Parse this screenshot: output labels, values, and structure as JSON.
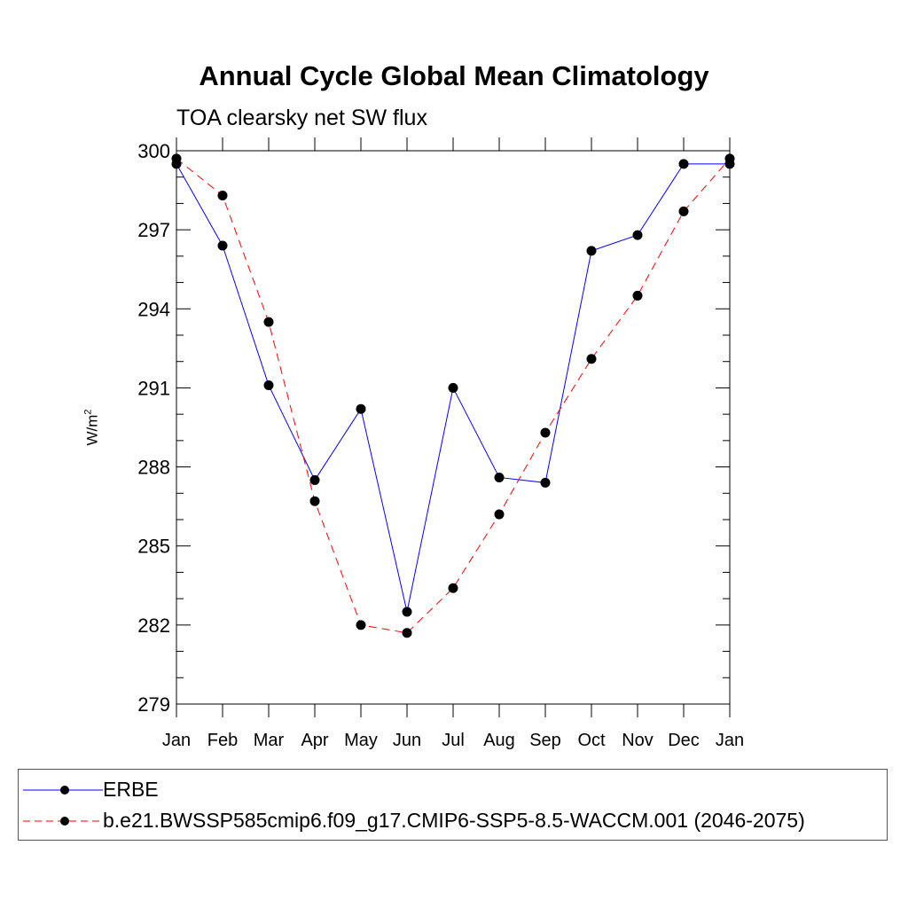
{
  "chart_data": {
    "type": "line",
    "title": "Annual Cycle Global Mean Climatology",
    "subtitle": "TOA clearsky net SW flux",
    "xlabel": "",
    "ylabel_base": "W/m",
    "ylabel_sup": "2",
    "categories": [
      "Jan",
      "Feb",
      "Mar",
      "Apr",
      "May",
      "Jun",
      "Jul",
      "Aug",
      "Sep",
      "Oct",
      "Nov",
      "Dec",
      "Jan"
    ],
    "ylim": [
      279,
      300
    ],
    "yticks": [
      279,
      282,
      285,
      288,
      291,
      294,
      297,
      300
    ],
    "series": [
      {
        "name": "ERBE",
        "color": "#0000ff",
        "dashed": false,
        "values": [
          299.5,
          296.4,
          291.1,
          287.5,
          290.2,
          282.5,
          291.0,
          287.6,
          287.4,
          296.2,
          296.8,
          299.5,
          299.5
        ]
      },
      {
        "name": "b.e21.BWSSP585cmip6.f09_g17.CMIP6-SSP5-8.5-WACCM.001 (2046-2075)",
        "color": "#ff0000",
        "dashed": true,
        "values": [
          299.7,
          298.3,
          293.5,
          286.7,
          282.0,
          281.7,
          283.4,
          286.2,
          289.3,
          292.1,
          294.5,
          297.7,
          299.7
        ]
      }
    ],
    "legend_position": "bottom"
  }
}
